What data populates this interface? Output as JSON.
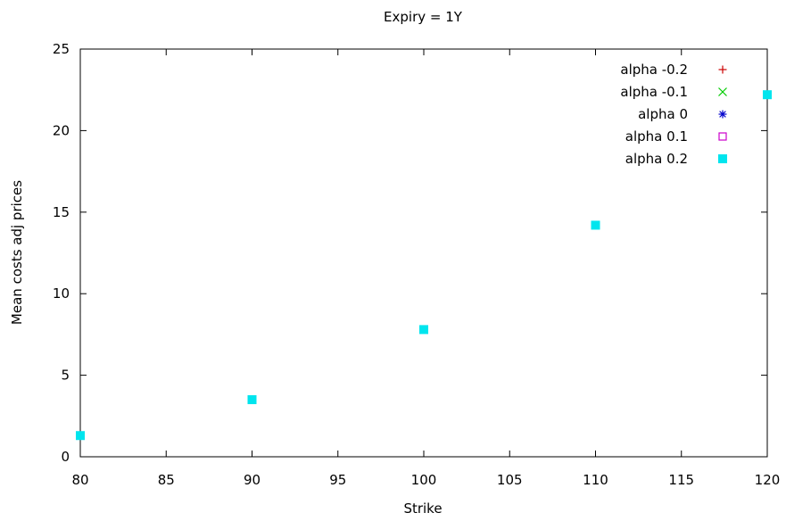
{
  "chart_data": {
    "type": "scatter",
    "title": "Expiry = 1Y",
    "xlabel": "Strike",
    "ylabel": "Mean costs adj prices",
    "xlim": [
      80,
      120
    ],
    "ylim": [
      0,
      25
    ],
    "xticks": [
      80,
      85,
      90,
      95,
      100,
      105,
      110,
      115,
      120
    ],
    "yticks": [
      0,
      5,
      10,
      15,
      20,
      25
    ],
    "grid": false,
    "legend_position": "top-right",
    "series": [
      {
        "name": "alpha -0.2",
        "marker": "plus",
        "color": "#cc0000",
        "x": [],
        "y": []
      },
      {
        "name": "alpha -0.1",
        "marker": "cross",
        "color": "#00cc00",
        "x": [],
        "y": []
      },
      {
        "name": "alpha 0",
        "marker": "asterisk",
        "color": "#0000cc",
        "x": [],
        "y": []
      },
      {
        "name": "alpha 0.1",
        "marker": "open-square",
        "color": "#cc00cc",
        "x": [],
        "y": []
      },
      {
        "name": "alpha 0.2",
        "marker": "filled-square",
        "color": "#00e5ee",
        "x": [
          80,
          90,
          100,
          110,
          120
        ],
        "y": [
          1.3,
          3.5,
          7.8,
          14.2,
          22.2
        ]
      }
    ]
  }
}
